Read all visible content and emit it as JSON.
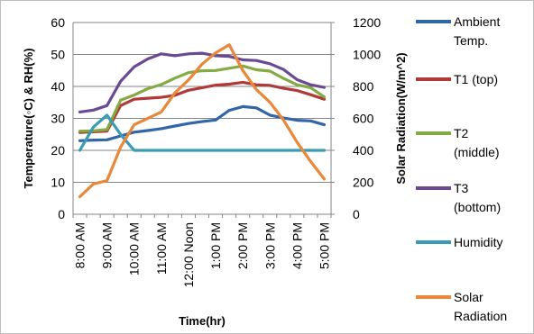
{
  "chart_data": {
    "type": "line",
    "title": "",
    "xlabel": "Time(hr)",
    "ylabel_left": "Temperature(◦C) & RH(%)",
    "ylabel_right": "Solar Radiation(W/m^2)",
    "ylim_left": [
      0,
      60
    ],
    "yticks_left": [
      "0",
      "10",
      "20",
      "30",
      "40",
      "50",
      "60"
    ],
    "ylim_right": [
      0,
      1200
    ],
    "yticks_right": [
      "0",
      "200",
      "400",
      "600",
      "800",
      "1000",
      "1200"
    ],
    "x_count": 19,
    "categories": [
      "8:00 AM",
      "",
      "9:00 AM",
      "",
      "10:00 AM",
      "",
      "11:00 AM",
      "",
      "12:00 Noon",
      "",
      "1:00 PM",
      "",
      "2:00 PM",
      "",
      "3:00 PM",
      "",
      "4:00 PM",
      "",
      "5:00 PM"
    ],
    "grid": "horizontal",
    "legend_position": "right",
    "series": [
      {
        "name": "Ambient Temp.",
        "axis": "left",
        "color": "#3366a8",
        "values": [
          23,
          23.2,
          23.3,
          24.5,
          25.7,
          26.2,
          26.8,
          27.6,
          28.4,
          29,
          29.5,
          32.5,
          33.7,
          33.3,
          31,
          30.1,
          29.4,
          29.2,
          28
        ]
      },
      {
        "name": "T1 (top)",
        "axis": "left",
        "color": "#b03a37",
        "values": [
          25.6,
          25.8,
          26,
          34,
          36,
          36.3,
          36.6,
          37.2,
          38.8,
          39.6,
          40.4,
          40.7,
          41.3,
          40.5,
          40.3,
          39.4,
          38.7,
          37.4,
          36
        ]
      },
      {
        "name": "T2 (middle)",
        "axis": "left",
        "color": "#84aa44",
        "values": [
          26,
          26.1,
          26.5,
          35.7,
          37.3,
          39.3,
          40.6,
          42.6,
          44.3,
          44.9,
          45,
          45.7,
          46.4,
          45.2,
          44.8,
          42.5,
          40.5,
          39.6,
          36.7
        ]
      },
      {
        "name": "T3 (bottom)",
        "axis": "left",
        "color": "#6b4a94",
        "values": [
          32,
          32.6,
          34,
          41.6,
          46.1,
          48.6,
          50.2,
          49.6,
          50.2,
          50.4,
          49.6,
          49.4,
          48.3,
          48.1,
          47.1,
          45.3,
          42.1,
          40.5,
          39.7
        ]
      },
      {
        "name": "Humidity",
        "axis": "left",
        "color": "#3a9bb5",
        "values": [
          20,
          27.3,
          31,
          25,
          20,
          20,
          20,
          20,
          20,
          20,
          20,
          20,
          20,
          20,
          20,
          20,
          20,
          20,
          20
        ]
      },
      {
        "name": "Solar Radiation",
        "axis": "right",
        "color": "#e9883a",
        "values": [
          110,
          190,
          210,
          420,
          560,
          600,
          640,
          760,
          840,
          940,
          1010,
          1060,
          900,
          780,
          700,
          590,
          450,
          330,
          220
        ]
      }
    ]
  }
}
